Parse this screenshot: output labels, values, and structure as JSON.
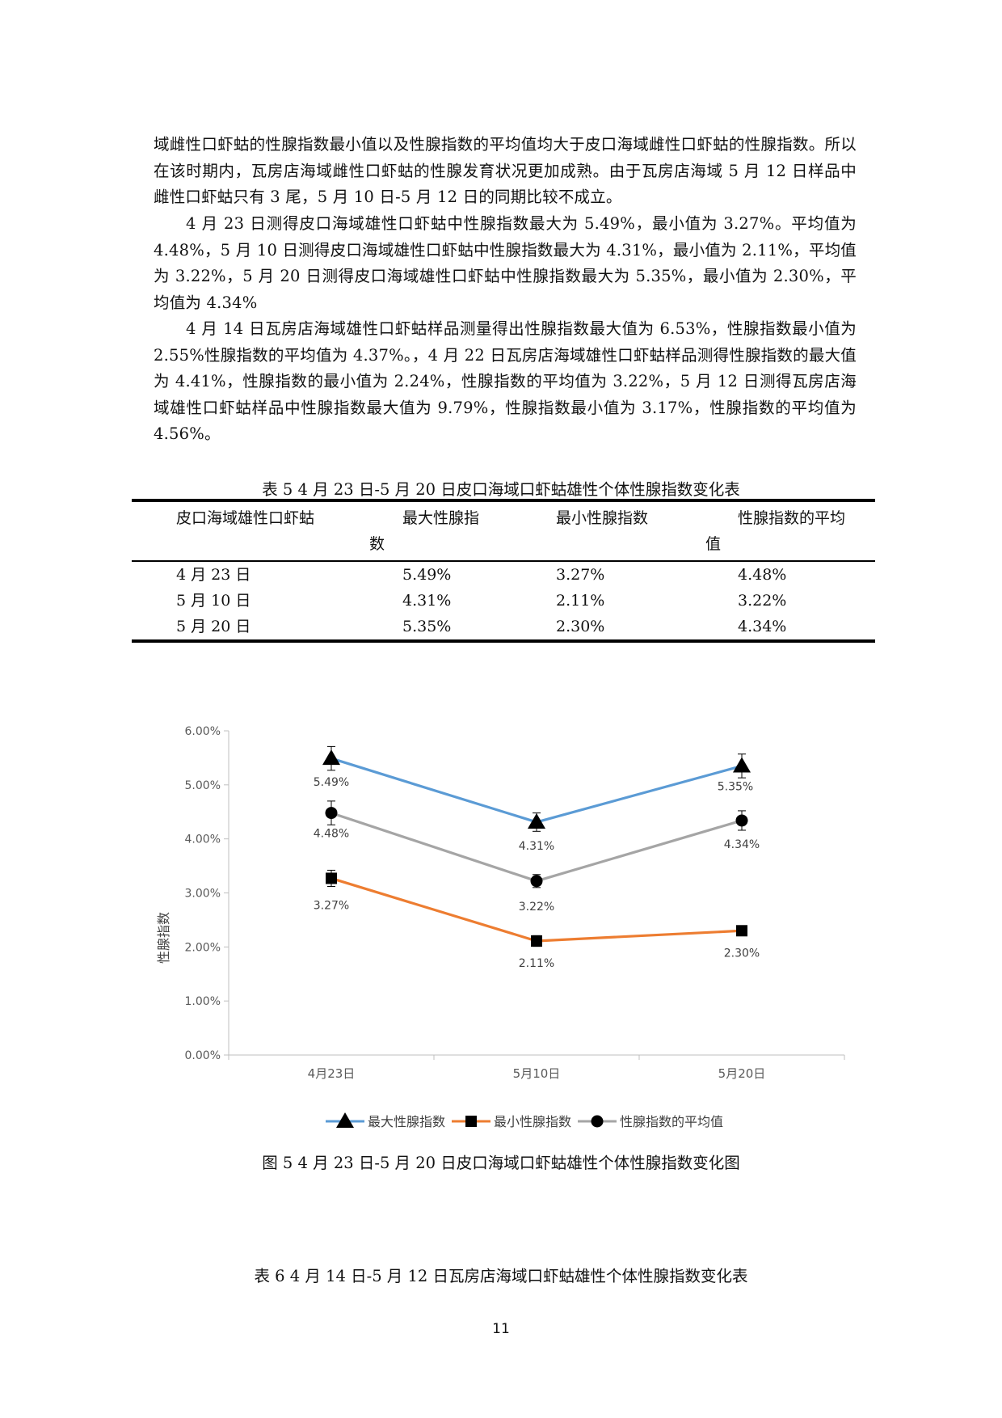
{
  "paragraphs": [
    "域雌性口虾蛄的性腺指数最小值以及性腺指数的平均值均大于皮口海域雌性口虾蛄的性腺指数。所以在该时期内，瓦房店海域雌性口虾蛄的性腺发育状况更加成熟。由于瓦房店海域 5 月 12 日样品中雌性口虾蛄只有 3 尾，5 月 10 日-5 月 12 日的同期比较不成立。",
    "4 月 23 日测得皮口海域雄性口虾蛄中性腺指数最大为 5.49%，最小值为 3.27%。平均值为 4.48%，5 月 10 日测得皮口海域雄性口虾蛄中性腺指数最大为 4.31%，最小值为 2.11%，平均值为 3.22%，5 月 20 日测得皮口海域雄性口虾蛄中性腺指数最大为 5.35%，最小值为 2.30%，平均值为 4.34%",
    "4 月 14 日瓦房店海域雄性口虾蛄样品测量得出性腺指数最大值为 6.53%，性腺指数最小值为 2.55%性腺指数的平均值为 4.37%。，4 月 22 日瓦房店海域雄性口虾蛄样品测得性腺指数的最大值为 4.41%，性腺指数的最小值为 2.24%，性腺指数的平均值为 3.22%，5 月 12 日测得瓦房店海域雄性口虾蛄样品中性腺指数最大值为 9.79%，性腺指数最小值为 3.17%，性腺指数的平均值为 4.56%。"
  ],
  "table5": {
    "caption": "表 5  4 月 23 日-5 月 20 日皮口海域口虾蛄雄性个体性腺指数变化表",
    "headers": {
      "col1": "皮口海域雄性口虾蛄",
      "col2_line1": "最大性腺指",
      "col2_line2": "数",
      "col3": "最小性腺指数",
      "col4_line1": "性腺指数的平均",
      "col4_line2": "值"
    },
    "rows": [
      {
        "date": "4 月 23 日",
        "max": "5.49%",
        "min": "3.27%",
        "avg": "4.48%"
      },
      {
        "date": "5 月 10 日",
        "max": "4.31%",
        "min": "2.11%",
        "avg": "3.22%"
      },
      {
        "date": "5 月 20 日",
        "max": "5.35%",
        "min": "2.30%",
        "avg": "4.34%"
      }
    ]
  },
  "chart_data": {
    "type": "line",
    "title": "",
    "ylabel": "性腺指数",
    "xlabel": "",
    "categories": [
      "4月23日",
      "5月10日",
      "5月20日"
    ],
    "yticks": [
      "0.00%",
      "1.00%",
      "2.00%",
      "3.00%",
      "4.00%",
      "5.00%",
      "6.00%"
    ],
    "ylim": [
      0,
      6
    ],
    "grid": false,
    "legend_position": "bottom",
    "series": [
      {
        "name": "最大性腺指数",
        "values": [
          5.49,
          4.31,
          5.35
        ],
        "labels": [
          "5.49%",
          "4.31%",
          "5.35%"
        ],
        "color": "#5b9bd5",
        "marker": "triangle",
        "error": [
          0.22,
          0.17,
          0.22
        ]
      },
      {
        "name": "最小性腺指数",
        "values": [
          3.27,
          2.11,
          2.3
        ],
        "labels": [
          "3.27%",
          "2.11%",
          "2.30%"
        ],
        "color": "#ed7d31",
        "marker": "square",
        "error": [
          0.15,
          0.1,
          0.08
        ]
      },
      {
        "name": "性腺指数的平均值",
        "values": [
          4.48,
          3.22,
          4.34
        ],
        "labels": [
          "4.48%",
          "3.22%",
          "4.34%"
        ],
        "color": "#a5a5a5",
        "marker": "circle",
        "error": [
          0.22,
          0.12,
          0.18
        ]
      }
    ]
  },
  "figure_caption": "图 5  4 月 23 日-5 月 20 日皮口海域口虾蛄雄性个体性腺指数变化图",
  "table6_caption": "表 6  4 月 14 日-5 月 12 日瓦房店海域口虾蛄雄性个体性腺指数变化表",
  "page_number": "11"
}
